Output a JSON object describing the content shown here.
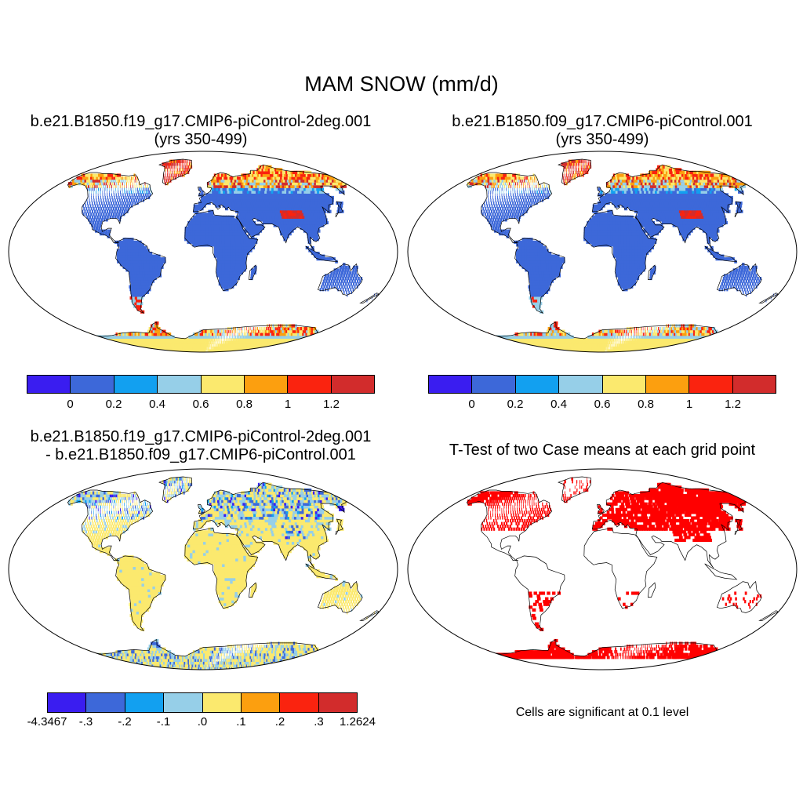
{
  "figure": {
    "title": "MAM SNOW (mm/d)"
  },
  "panels": [
    {
      "title_line1": "b.e21.B1850.f19_g17.CMIP6-piControl-2deg.001",
      "title_line2": "(yrs 350-499)"
    },
    {
      "title_line1": "b.e21.B1850.f09_g17.CMIP6-piControl.001",
      "title_line2": "(yrs 350-499)"
    },
    {
      "title_line1": "b.e21.B1850.f19_g17.CMIP6-piControl-2deg.001",
      "title_line2": "- b.e21.B1850.f09_g17.CMIP6-piControl.001"
    },
    {
      "title_line1": "T-Test of two Case means at each grid point",
      "title_line2": ""
    }
  ],
  "colorbars": {
    "snow": {
      "colors": [
        "#3a1df0",
        "#3d68d9",
        "#12a0f0",
        "#96cfe8",
        "#fbe96e",
        "#fc9f0f",
        "#fa230f",
        "#d22c2c"
      ],
      "labels": [
        "0",
        "0.2",
        "0.4",
        "0.6",
        "0.8",
        "1",
        "1.2"
      ]
    },
    "diff": {
      "colors": [
        "#3a1df0",
        "#3d68d9",
        "#12a0f0",
        "#96cfe8",
        "#fbe96e",
        "#fc9f0f",
        "#fa230f",
        "#d22c2c"
      ],
      "labels": [
        "-4.3467",
        "-.3",
        "-.2",
        "-.1",
        ".0",
        ".1",
        ".2",
        ".3",
        "1.2624"
      ]
    }
  },
  "significance_note": "Cells are significant at 0.1 level",
  "map_colors": {
    "ocean": "#ffffff",
    "land_low": "#3d68d9",
    "snow_mid": "#96cfe8",
    "snow_warm": "#fbe96e",
    "snow_orange": "#fc9f0f",
    "snow_red": "#fa230f",
    "snow_dark": "#d22c2c",
    "diff_base": "#fbe96e",
    "diff_neg": "#96cfe8",
    "diff_neg2": "#3d68d9",
    "diff_neg3": "#3a1df0",
    "sig": "#ff0000"
  }
}
